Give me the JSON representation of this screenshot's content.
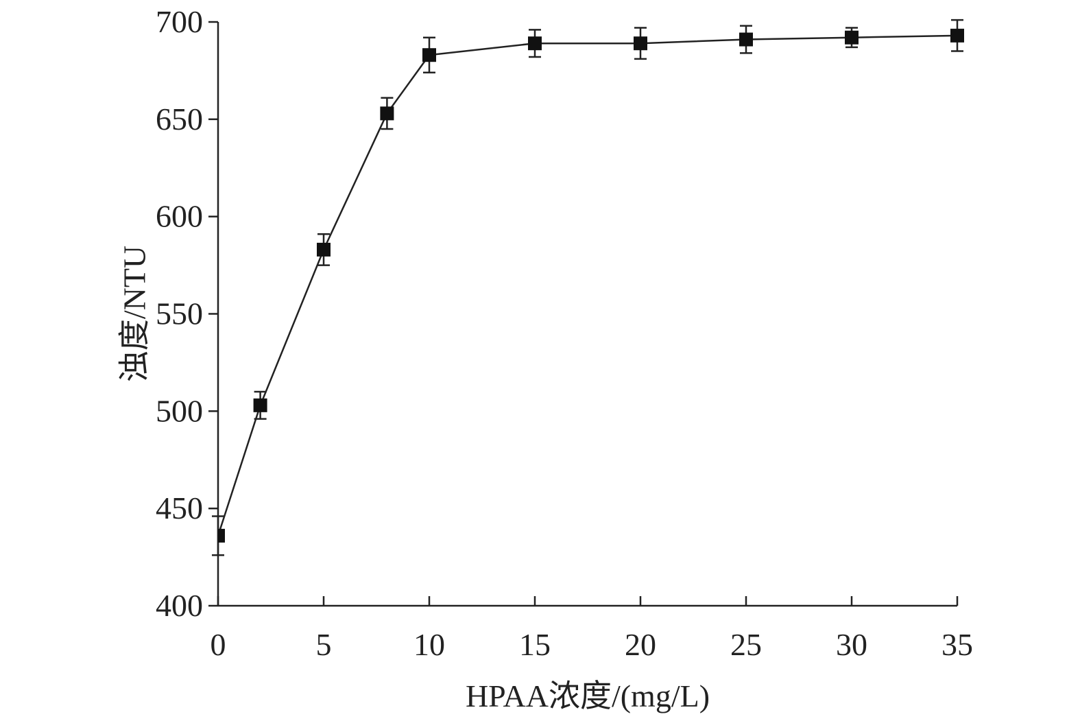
{
  "chart_data": {
    "type": "line",
    "xlabel": "HPAA浓度/(mg/L)",
    "ylabel": "浊度/NTU",
    "xlim": [
      0,
      35
    ],
    "ylim": [
      400,
      700
    ],
    "xticks": [
      0,
      5,
      10,
      15,
      20,
      25,
      30,
      35
    ],
    "yticks": [
      400,
      450,
      500,
      550,
      600,
      650,
      700
    ],
    "grid": false,
    "series": [
      {
        "marker": "square",
        "color": "#111111",
        "points": [
          {
            "x": 0,
            "y": 436,
            "err": 10
          },
          {
            "x": 2,
            "y": 503,
            "err": 7
          },
          {
            "x": 5,
            "y": 583,
            "err": 8
          },
          {
            "x": 8,
            "y": 653,
            "err": 8
          },
          {
            "x": 10,
            "y": 683,
            "err": 9
          },
          {
            "x": 15,
            "y": 689,
            "err": 7
          },
          {
            "x": 20,
            "y": 689,
            "err": 8
          },
          {
            "x": 25,
            "y": 691,
            "err": 7
          },
          {
            "x": 30,
            "y": 692,
            "err": 5
          },
          {
            "x": 35,
            "y": 693,
            "err": 8
          }
        ]
      }
    ]
  }
}
